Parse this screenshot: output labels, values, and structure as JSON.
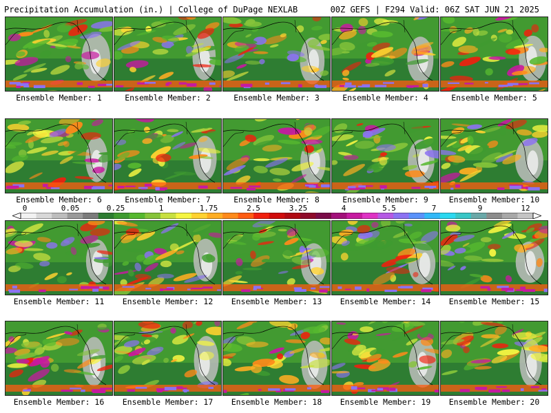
{
  "header": {
    "left_title": "Precipitation Accumulation (in.) | College of DuPage NEXLAB",
    "right_title": "00Z GEFS | F294 Valid: 06Z SAT JUN 21 2025"
  },
  "colorbar": {
    "tick_labels": [
      "0",
      "0.05",
      "0.25",
      "1",
      "1.75",
      "2.5",
      "3.25",
      "4",
      "5.5",
      "7",
      "9",
      "12"
    ],
    "colors": [
      "#f2f2f2",
      "#d8d8d8",
      "#bdbdbd",
      "#9a9a9a",
      "#7c7c7c",
      "#2e7d32",
      "#3f9b30",
      "#56b82f",
      "#86c43a",
      "#c8e040",
      "#f5f542",
      "#ffd230",
      "#ffae22",
      "#ff8a1a",
      "#ff5c12",
      "#f0200e",
      "#d00c0c",
      "#b00a12",
      "#8e0a2a",
      "#7a0b48",
      "#a2107a",
      "#c61aa0",
      "#de32c4",
      "#b65ae4",
      "#8c72f2",
      "#5a92fa",
      "#32b8f8",
      "#2ad8f0",
      "#38c6c6",
      "#6aa8a8",
      "#8c8c8c",
      "#a8a8a8",
      "#c4c4c4"
    ]
  },
  "ensemble_members": [
    {
      "label": "Ensemble Member: 1"
    },
    {
      "label": "Ensemble Member: 2"
    },
    {
      "label": "Ensemble Member: 3"
    },
    {
      "label": "Ensemble Member: 4"
    },
    {
      "label": "Ensemble Member: 5"
    },
    {
      "label": "Ensemble Member: 6"
    },
    {
      "label": "Ensemble Member: 7"
    },
    {
      "label": "Ensemble Member: 8"
    },
    {
      "label": "Ensemble Member: 9"
    },
    {
      "label": "Ensemble Member: 10"
    },
    {
      "label": "Ensemble Member: 11"
    },
    {
      "label": "Ensemble Member: 12"
    },
    {
      "label": "Ensemble Member: 13"
    },
    {
      "label": "Ensemble Member: 14"
    },
    {
      "label": "Ensemble Member: 15"
    },
    {
      "label": "Ensemble Member: 16"
    },
    {
      "label": "Ensemble Member: 17"
    },
    {
      "label": "Ensemble Member: 18"
    },
    {
      "label": "Ensemble Member: 19"
    },
    {
      "label": "Ensemble Member: 20"
    }
  ]
}
